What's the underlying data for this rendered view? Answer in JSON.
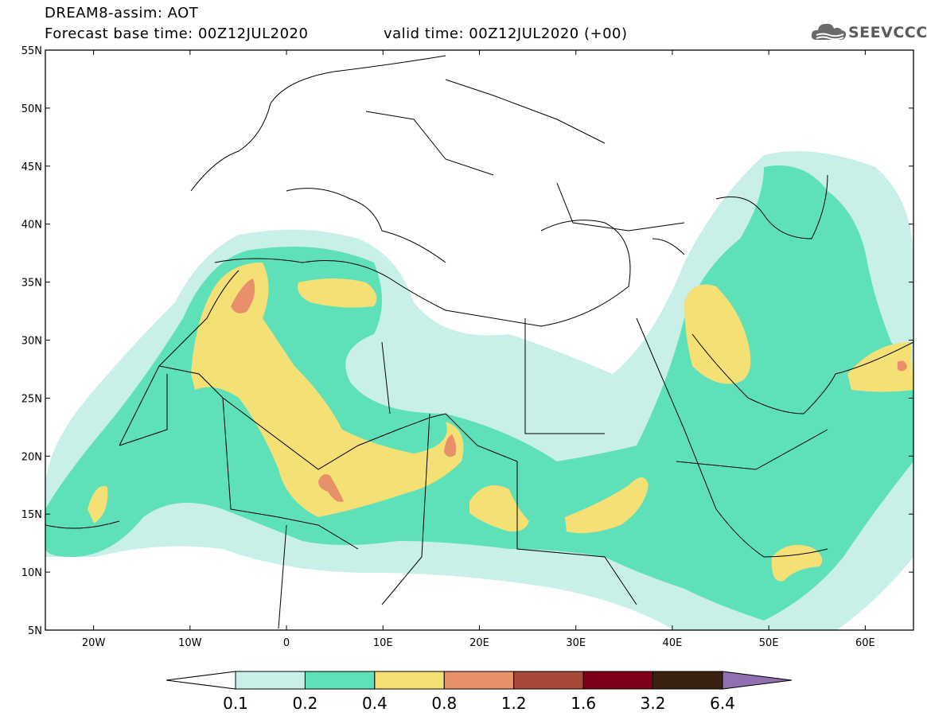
{
  "header": {
    "line1": "DREAM8-assim: AOT",
    "line2a": "Forecast base time: 00Z12JUL2020",
    "line2b": "valid time: 00Z12JUL2020 (+00)"
  },
  "logo": {
    "text": "SEEVCCC",
    "icon": "cloud-icon"
  },
  "map": {
    "lon_range": [
      -25,
      65
    ],
    "lat_range": [
      5,
      55
    ],
    "lon_ticks": [
      {
        "v": -20,
        "label": "20W"
      },
      {
        "v": -10,
        "label": "10W"
      },
      {
        "v": 0,
        "label": "0"
      },
      {
        "v": 10,
        "label": "10E"
      },
      {
        "v": 20,
        "label": "20E"
      },
      {
        "v": 30,
        "label": "30E"
      },
      {
        "v": 40,
        "label": "40E"
      },
      {
        "v": 50,
        "label": "50E"
      },
      {
        "v": 60,
        "label": "60E"
      }
    ],
    "lat_ticks": [
      {
        "v": 5,
        "label": "5N"
      },
      {
        "v": 10,
        "label": "10N"
      },
      {
        "v": 15,
        "label": "15N"
      },
      {
        "v": 20,
        "label": "20N"
      },
      {
        "v": 25,
        "label": "25N"
      },
      {
        "v": 30,
        "label": "30N"
      },
      {
        "v": 35,
        "label": "35N"
      },
      {
        "v": 40,
        "label": "40N"
      },
      {
        "v": 45,
        "label": "45N"
      },
      {
        "v": 50,
        "label": "50N"
      },
      {
        "v": 55,
        "label": "55N"
      }
    ]
  },
  "colorbar": {
    "levels": [
      "0.1",
      "0.2",
      "0.4",
      "0.8",
      "1.2",
      "1.6",
      "3.2",
      "6.4"
    ],
    "colors": [
      "#c8f0e8",
      "#5ee0b8",
      "#f5e075",
      "#e8906a",
      "#a84838",
      "#7e0018",
      "#3a2210"
    ],
    "under_color": "#ffffff",
    "over_color": "#9070b0"
  }
}
